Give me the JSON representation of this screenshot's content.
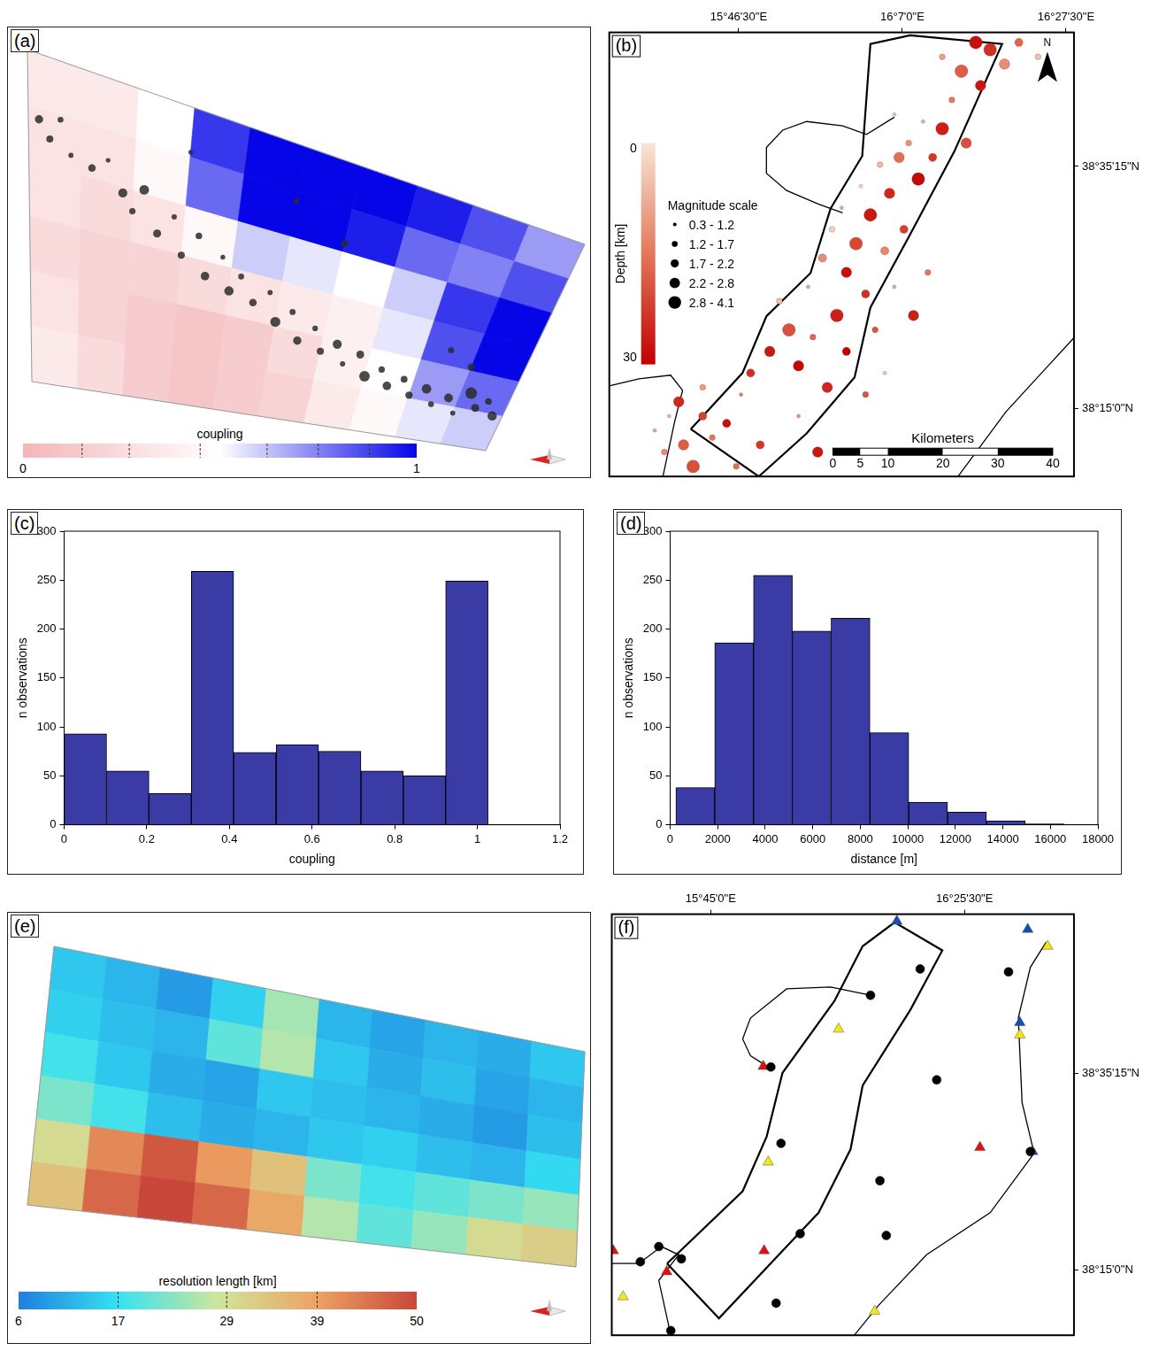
{
  "chart_data": [
    {
      "panel": "(a)",
      "type": "surface",
      "cells": [
        [
          0.35,
          0.35,
          0.5,
          0.9,
          1,
          1,
          1,
          0.95,
          0.85,
          0.7
        ],
        [
          0.3,
          0.3,
          0.45,
          0.8,
          1,
          1,
          0.95,
          0.8,
          0.75,
          0.85
        ],
        [
          0.3,
          0.25,
          0.3,
          0.45,
          0.6,
          0.55,
          0.5,
          0.6,
          0.9,
          1
        ],
        [
          0.25,
          0.2,
          0.2,
          0.25,
          0.3,
          0.35,
          0.4,
          0.55,
          0.85,
          1
        ],
        [
          0.3,
          0.2,
          0.15,
          0.1,
          0.15,
          0.25,
          0.4,
          0.5,
          0.7,
          0.8
        ],
        [
          0.35,
          0.25,
          0.15,
          0.1,
          0.15,
          0.2,
          0.35,
          0.45,
          0.55,
          0.6
        ]
      ],
      "events": {
        "along_strike": [
          0.02,
          0.04,
          0.06,
          0.08,
          0.12,
          0.15,
          0.18,
          0.2,
          0.22,
          0.25,
          0.28,
          0.3,
          0.33,
          0.35,
          0.38,
          0.4,
          0.42,
          0.45,
          0.48,
          0.5,
          0.53,
          0.55,
          0.58,
          0.6,
          0.63,
          0.65,
          0.68,
          0.7,
          0.73,
          0.75,
          0.78,
          0.8,
          0.83,
          0.85,
          0.88,
          0.9,
          0.92,
          0.94,
          0.96,
          0.98,
          0.5,
          0.6,
          0.85,
          0.9,
          0.3
        ],
        "down_dip": [
          0.2,
          0.25,
          0.18,
          0.28,
          0.3,
          0.26,
          0.35,
          0.4,
          0.32,
          0.45,
          0.38,
          0.5,
          0.42,
          0.55,
          0.47,
          0.58,
          0.52,
          0.6,
          0.55,
          0.65,
          0.6,
          0.7,
          0.64,
          0.72,
          0.68,
          0.75,
          0.7,
          0.78,
          0.74,
          0.8,
          0.76,
          0.82,
          0.78,
          0.84,
          0.8,
          0.86,
          0.76,
          0.82,
          0.78,
          0.84,
          0.2,
          0.3,
          0.6,
          0.65,
          0.15
        ],
        "magnitude": [
          2.5,
          2.0,
          1.5,
          1.2,
          2.2,
          1.0,
          2.8,
          1.7,
          3.0,
          2.4,
          1.3,
          2.0,
          1.8,
          2.6,
          1.1,
          2.9,
          1.5,
          2.2,
          1.2,
          3.2,
          1.6,
          2.5,
          1.4,
          2.0,
          2.8,
          1.3,
          2.3,
          3.4,
          1.7,
          2.6,
          1.9,
          2.1,
          3.0,
          1.5,
          2.7,
          1.2,
          3.8,
          2.4,
          1.8,
          2.9,
          1.5,
          2.0,
          1.6,
          2.2,
          1.0
        ]
      },
      "colorbar": {
        "title": "coupling",
        "range": [
          0,
          1
        ],
        "ticks": [
          0.15,
          0.27,
          0.45,
          0.62,
          0.75,
          0.88
        ],
        "tick_labels": false
      }
    },
    {
      "panel": "(b)",
      "type": "map",
      "grid": false,
      "xlim": [
        15.505,
        16.475
      ],
      "ylim": [
        38.156,
        38.774
      ],
      "xticks": [
        {
          "value": 15.775,
          "label": "15°46'30\"E"
        },
        {
          "value": 16.1167,
          "label": "16°7'0\"E"
        },
        {
          "value": 16.4583,
          "label": "16°27'30\"E"
        }
      ],
      "yticks": [
        {
          "value": 38.5875,
          "label": "38°35'15\"N"
        },
        {
          "value": 38.25,
          "label": "38°15'0\"N"
        }
      ],
      "outline": {
        "lon": [
          15.675,
          15.783,
          15.833,
          15.925,
          15.967,
          16.033,
          16.05,
          16.133,
          16.325,
          16.225,
          16.133,
          16.05,
          16.017,
          15.917,
          15.817
        ],
        "lat": [
          38.222,
          38.3,
          38.379,
          38.439,
          38.529,
          38.602,
          38.758,
          38.77,
          38.758,
          38.608,
          38.493,
          38.391,
          38.294,
          38.216,
          38.156
        ]
      },
      "coastlines": [
        {
          "lon": [
            16.1,
            16.042,
            15.992,
            15.917,
            15.867,
            15.833,
            15.833,
            15.875,
            15.942,
            15.992
          ],
          "lat": [
            38.656,
            38.632,
            38.644,
            38.65,
            38.638,
            38.614,
            38.578,
            38.554,
            38.535,
            38.523
          ]
        },
        {
          "lon": [
            15.505,
            15.567,
            15.633,
            15.658,
            15.642,
            15.617
          ],
          "lat": [
            38.282,
            38.292,
            38.297,
            38.276,
            38.234,
            38.156
          ]
        },
        {
          "lon": [
            16.475,
            16.417,
            16.333,
            16.233
          ],
          "lat": [
            38.349,
            38.307,
            38.246,
            38.156
          ]
        }
      ],
      "events": {
        "lon": [
          15.62,
          15.66,
          15.6,
          15.7,
          15.65,
          15.72,
          15.68,
          15.75,
          15.63,
          15.7,
          15.8,
          15.84,
          15.78,
          15.88,
          15.86,
          15.9,
          15.93,
          15.96,
          15.92,
          15.98,
          15.95,
          16.0,
          15.97,
          16.02,
          16.04,
          16.06,
          15.99,
          16.05,
          16.08,
          16.03,
          16.09,
          16.12,
          16.07,
          16.11,
          16.15,
          16.13,
          16.18,
          16.16,
          16.2,
          16.22,
          16.1,
          16.25,
          16.24,
          16.28,
          16.2,
          16.3,
          16.33,
          16.36,
          16.27,
          16.4,
          16.17,
          16.1,
          16.14,
          16.0,
          15.9,
          15.82,
          15.77,
          16.08,
          16.04,
          15.94
        ],
        "lat": [
          38.19,
          38.2,
          38.22,
          38.24,
          38.26,
          38.21,
          38.17,
          38.23,
          38.24,
          38.28,
          38.3,
          38.33,
          38.27,
          38.36,
          38.4,
          38.31,
          38.35,
          38.28,
          38.42,
          38.38,
          38.46,
          38.44,
          38.5,
          38.48,
          38.41,
          38.36,
          38.53,
          38.52,
          38.47,
          38.56,
          38.55,
          38.5,
          38.59,
          38.6,
          38.57,
          38.62,
          38.6,
          38.65,
          38.64,
          38.68,
          38.66,
          38.62,
          38.72,
          38.7,
          38.74,
          38.75,
          38.73,
          38.76,
          38.76,
          38.74,
          38.44,
          38.42,
          38.38,
          38.33,
          38.24,
          38.2,
          38.17,
          38.3,
          38.27,
          38.19
        ],
        "depth": [
          12,
          18,
          8,
          22,
          25,
          15,
          20,
          28,
          6,
          10,
          24,
          27,
          14,
          20,
          5,
          29,
          17,
          25,
          9,
          26,
          12,
          28,
          3,
          21,
          24,
          19,
          8,
          27,
          13,
          2,
          25,
          22,
          6,
          16,
          29,
          11,
          23,
          7,
          26,
          14,
          4,
          20,
          18,
          27,
          9,
          24,
          12,
          17,
          28,
          5,
          15,
          8,
          26,
          30,
          11,
          23,
          16,
          4,
          19,
          27
        ],
        "magnitude": [
          1.5,
          2.3,
          1.0,
          1.9,
          2.6,
          1.3,
          2.9,
          1.8,
          0.9,
          1.4,
          2.0,
          2.4,
          1.1,
          3.0,
          1.6,
          2.2,
          1.2,
          2.7,
          1.0,
          3.2,
          1.8,
          2.5,
          1.3,
          3.5,
          2.0,
          1.5,
          1.1,
          2.9,
          1.7,
          0.8,
          2.3,
          1.9,
          1.2,
          2.6,
          3.1,
          1.4,
          2.1,
          1.0,
          2.8,
          1.6,
          0.9,
          2.4,
          3.8,
          2.2,
          1.3,
          3.4,
          2.7,
          1.9,
          4.0,
          1.2,
          1.4,
          1.0,
          2.5,
          1.8,
          1.1,
          2.1,
          1.5,
          0.7,
          1.6,
          2.3
        ]
      },
      "depth_scale": {
        "title": "Depth [km]",
        "range": [
          0,
          30
        ]
      },
      "magnitude_scale": {
        "title": "Magnitude scale",
        "bins": [
          0.3,
          1.2,
          1.7,
          2.2,
          2.8,
          4.1
        ],
        "labels": [
          "0.3 - 1.2",
          "1.2 - 1.7",
          "1.7 - 2.2",
          "2.2 - 2.8",
          "2.8 - 4.1"
        ]
      },
      "scale_bar": {
        "title": "Kilometers",
        "ticks": [
          0,
          5,
          10,
          20,
          30,
          40
        ]
      },
      "north": "N"
    },
    {
      "panel": "(c)",
      "type": "histogram",
      "grid": false,
      "bins": [
        0,
        0.103,
        0.205,
        0.308,
        0.41,
        0.513,
        0.616,
        0.718,
        0.821,
        0.923,
        1.026
      ],
      "counts": [
        93,
        55,
        32,
        259,
        74,
        82,
        75,
        55,
        50,
        249
      ],
      "color": "#3b3ba6",
      "xlim": [
        0,
        1.2
      ],
      "xticks": [
        0,
        0.2,
        0.4,
        0.6,
        0.8,
        1,
        1.2
      ],
      "ylim": [
        0,
        300
      ],
      "yticks": [
        0,
        50,
        100,
        150,
        200,
        250,
        300
      ],
      "x_label": "coupling",
      "y_label": "n observations"
    },
    {
      "panel": "(d)",
      "type": "histogram",
      "grid": false,
      "bins": [
        242,
        1875,
        3508,
        5141,
        6774,
        8407,
        10040,
        11673,
        13306,
        14939,
        16572
      ],
      "counts": [
        38,
        186,
        255,
        198,
        211,
        94,
        23,
        13,
        4,
        1
      ],
      "color": "#3b3ba6",
      "xlim": [
        0,
        18000
      ],
      "xticks": [
        0,
        2000,
        4000,
        6000,
        8000,
        10000,
        12000,
        14000,
        16000,
        18000
      ],
      "ylim": [
        0,
        300
      ],
      "yticks": [
        0,
        50,
        100,
        150,
        200,
        250,
        300
      ],
      "x_label": "distance [m]",
      "y_label": "n observations"
    },
    {
      "panel": "(e)",
      "type": "surface",
      "cells": [
        [
          14,
          12,
          9,
          15,
          25,
          12,
          10,
          12,
          11,
          14
        ],
        [
          15,
          13,
          12,
          20,
          26,
          14,
          11,
          13,
          10,
          12
        ],
        [
          18,
          14,
          11,
          10,
          14,
          13,
          12,
          11,
          9,
          13
        ],
        [
          22,
          18,
          13,
          11,
          12,
          14,
          15,
          13,
          12,
          16
        ],
        [
          30,
          42,
          48,
          40,
          34,
          22,
          18,
          20,
          22,
          24
        ],
        [
          34,
          46,
          50,
          46,
          38,
          26,
          20,
          24,
          30,
          32
        ]
      ],
      "colorbar": {
        "title": "resolution length [km]",
        "range": [
          6,
          50
        ],
        "ticks": [
          17,
          29,
          39
        ]
      }
    },
    {
      "panel": "(f)",
      "type": "map",
      "grid": false,
      "xlim": [
        15.487,
        16.716
      ],
      "ylim": [
        38.138,
        38.86
      ],
      "xticks": [
        {
          "value": 15.75,
          "label": "15°45'0\"E"
        },
        {
          "value": 16.425,
          "label": "16°25'30\"E"
        }
      ],
      "yticks": [
        {
          "value": 38.5875,
          "label": "38°35'15\"N"
        },
        {
          "value": 38.25,
          "label": "38°15'0\"N"
        }
      ],
      "outline": {
        "lon": [
          15.634,
          15.835,
          15.899,
          15.941,
          16.079,
          16.154,
          16.239,
          16.366,
          16.281,
          16.154,
          16.122,
          16.037,
          15.984,
          15.772
        ],
        "lat": [
          38.261,
          38.385,
          38.479,
          38.588,
          38.711,
          38.805,
          38.846,
          38.798,
          38.696,
          38.566,
          38.457,
          38.348,
          38.312,
          38.167
        ]
      },
      "coastlines": [
        {
          "lon": [
            16.175,
            16.069,
            15.952,
            15.856,
            15.835,
            15.856,
            15.91
          ],
          "lat": [
            38.721,
            38.735,
            38.732,
            38.682,
            38.646,
            38.617,
            38.595
          ]
        },
        {
          "lon": [
            16.642,
            16.6,
            16.568,
            16.578,
            16.61,
            16.493,
            16.324,
            16.196,
            16.132
          ],
          "lat": [
            38.812,
            38.769,
            38.682,
            38.537,
            38.45,
            38.348,
            38.276,
            38.189,
            38.138
          ]
        },
        {
          "lon": [
            15.487,
            15.559,
            15.619,
            15.665,
            15.612,
            15.644
          ],
          "lat": [
            38.261,
            38.261,
            38.29,
            38.276,
            38.232,
            38.138
          ]
        }
      ],
      "series": [
        {
          "marker": "circle",
          "color": "#000000",
          "lon": [
            16.307,
            16.175,
            16.542,
            15.91,
            16.351,
            15.937,
            16.6,
            16.2,
            15.988,
            16.217,
            15.612,
            15.672,
            15.563,
            15.924,
            15.644
          ],
          "lat": [
            38.766,
            38.721,
            38.761,
            38.598,
            38.576,
            38.467,
            38.453,
            38.403,
            38.312,
            38.309,
            38.29,
            38.269,
            38.264,
            38.193,
            38.146
          ]
        },
        {
          "marker": "triangle",
          "color": "#e01010",
          "lon": [
            15.89,
            16.466,
            15.892,
            15.491,
            15.633
          ],
          "lat": [
            38.599,
            38.46,
            38.283,
            38.283,
            38.247
          ]
        },
        {
          "marker": "triangle",
          "color": "#1050b0",
          "lon": [
            16.245,
            16.593,
            16.572,
            16.606
          ],
          "lat": [
            38.848,
            38.834,
            38.674,
            38.453
          ]
        },
        {
          "marker": "triangle",
          "color": "#f2e614",
          "lon": [
            16.646,
            16.09,
            16.572,
            15.903,
            15.517,
            16.186
          ],
          "lat": [
            38.805,
            38.663,
            38.653,
            38.435,
            38.204,
            38.179
          ]
        }
      ]
    }
  ]
}
